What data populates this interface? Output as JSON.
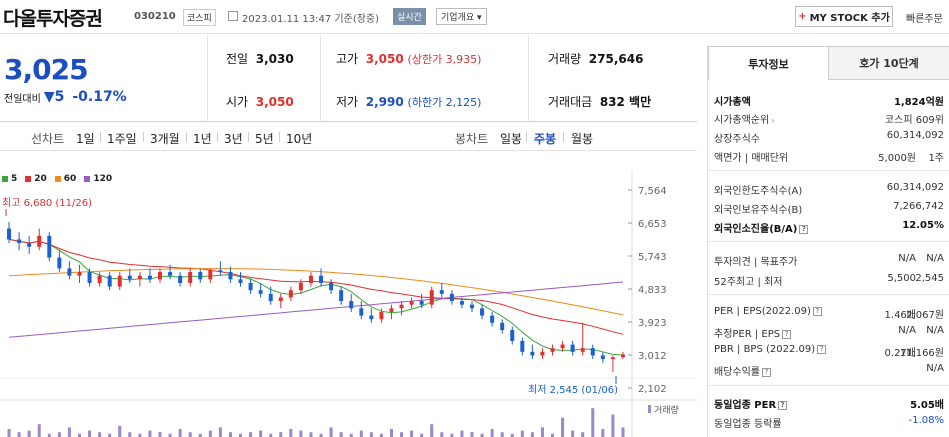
{
  "header": {
    "name": "다올투자증권",
    "code": "030210",
    "market": "코스피",
    "datetime": "2023.01.11 13:47 기준(장중)",
    "realtime": "실시간",
    "company_info": "기업개요 ▾",
    "mystock": "MY STOCK 추가",
    "quick_order": "빠른주문"
  },
  "summary": {
    "price": "3,025",
    "change_label": "전일대비",
    "change_value": "▼5",
    "change_pct": "-0.17%",
    "prev_close_label": "전일",
    "prev_close": "3,030",
    "open_label": "시가",
    "open": "3,050",
    "high_label": "고가",
    "high": "3,050",
    "high_limit": "(상한가 3,935)",
    "low_label": "저가",
    "low": "2,990",
    "low_limit": "(하한가 2,125)",
    "volume_label": "거래량",
    "volume": "275,646",
    "amount_label": "거래대금",
    "amount": "832 백만"
  },
  "chart_tabs": {
    "line_label": "선차트",
    "line_items": [
      "1일",
      "1주일",
      "3개월",
      "1년",
      "3년",
      "5년",
      "10년"
    ],
    "candle_label": "봉차트",
    "candle_items": [
      "일봉",
      "주봉",
      "월봉"
    ],
    "active": "주봉"
  },
  "chart_data": {
    "type": "candlestick",
    "legend": [
      {
        "name": "5",
        "color": "#3aa63a"
      },
      {
        "name": "20",
        "color": "#e03030"
      },
      {
        "name": "60",
        "color": "#f08a1a"
      },
      {
        "name": "120",
        "color": "#9a5ac8"
      }
    ],
    "y_ticks": [
      "7,564",
      "6,653",
      "5,743",
      "4,833",
      "3,923",
      "3,012",
      "2,102"
    ],
    "ylim": [
      2102,
      7564
    ],
    "high_label": "최고 6,680 (11/26)",
    "low_label": "최저 2,545 (01/06)",
    "volume_label": "거래량",
    "candles": [
      [
        6500,
        6680,
        6100,
        6200
      ],
      [
        6200,
        6400,
        5900,
        6100
      ],
      [
        6100,
        6300,
        5800,
        6000
      ],
      [
        6000,
        6500,
        5900,
        6300
      ],
      [
        6300,
        6400,
        5600,
        5700
      ],
      [
        5700,
        5900,
        5300,
        5400
      ],
      [
        5400,
        5600,
        5100,
        5200
      ],
      [
        5200,
        5500,
        5000,
        5300
      ],
      [
        5300,
        5400,
        4900,
        5000
      ],
      [
        5000,
        5300,
        4900,
        5200
      ],
      [
        5200,
        5300,
        4800,
        4900
      ],
      [
        4900,
        5300,
        4800,
        5200
      ],
      [
        5200,
        5400,
        5000,
        5100
      ],
      [
        5100,
        5300,
        4900,
        5200
      ],
      [
        5200,
        5400,
        5000,
        5100
      ],
      [
        5100,
        5400,
        5000,
        5300
      ],
      [
        5300,
        5500,
        5100,
        5200
      ],
      [
        5200,
        5300,
        4900,
        5000
      ],
      [
        5000,
        5400,
        4900,
        5300
      ],
      [
        5300,
        5400,
        5000,
        5100
      ],
      [
        5100,
        5400,
        5000,
        5350
      ],
      [
        5350,
        5600,
        5200,
        5300
      ],
      [
        5300,
        5450,
        5000,
        5100
      ],
      [
        5100,
        5300,
        4900,
        5000
      ],
      [
        5000,
        5100,
        4700,
        4800
      ],
      [
        4800,
        5000,
        4600,
        4700
      ],
      [
        4700,
        4900,
        4400,
        4500
      ],
      [
        4500,
        4700,
        4300,
        4600
      ],
      [
        4600,
        4900,
        4500,
        4800
      ],
      [
        4800,
        5100,
        4700,
        5000
      ],
      [
        5000,
        5300,
        4900,
        5200
      ],
      [
        5200,
        5400,
        4900,
        5000
      ],
      [
        5000,
        5100,
        4700,
        4800
      ],
      [
        4800,
        4900,
        4400,
        4500
      ],
      [
        4500,
        4700,
        4200,
        4300
      ],
      [
        4300,
        4500,
        4000,
        4100
      ],
      [
        4100,
        4300,
        3900,
        4000
      ],
      [
        4000,
        4300,
        3900,
        4200
      ],
      [
        4200,
        4400,
        4000,
        4300
      ],
      [
        4300,
        4500,
        4100,
        4400
      ],
      [
        4400,
        4600,
        4300,
        4500
      ],
      [
        4500,
        4700,
        4300,
        4400
      ],
      [
        4400,
        4900,
        4300,
        4800
      ],
      [
        4800,
        5000,
        4600,
        4700
      ],
      [
        4700,
        4800,
        4400,
        4500
      ],
      [
        4500,
        4600,
        4300,
        4400
      ],
      [
        4400,
        4500,
        4200,
        4300
      ],
      [
        4300,
        4400,
        4000,
        4100
      ],
      [
        4100,
        4200,
        3800,
        3900
      ],
      [
        3900,
        4000,
        3600,
        3700
      ],
      [
        3700,
        3800,
        3300,
        3400
      ],
      [
        3400,
        3500,
        3000,
        3100
      ],
      [
        3100,
        3300,
        2900,
        3000
      ],
      [
        3000,
        3200,
        2900,
        3100
      ],
      [
        3100,
        3300,
        3000,
        3200
      ],
      [
        3200,
        3400,
        3100,
        3300
      ],
      [
        3300,
        3400,
        3000,
        3100
      ],
      [
        3100,
        3900,
        3000,
        3200
      ],
      [
        3200,
        3300,
        2900,
        3000
      ],
      [
        3000,
        3100,
        2800,
        2900
      ],
      [
        2900,
        3000,
        2545,
        2950
      ],
      [
        2950,
        3100,
        2900,
        3025
      ]
    ]
  },
  "right_panel": {
    "tab_active": "투자정보",
    "tab_inactive": "호가 10단계",
    "market_cap_label": "시가총액",
    "market_cap": "1,824억원",
    "market_cap_rank_label": "시가총액순위",
    "market_cap_rank": "코스피 609위",
    "shares_label": "상장주식수",
    "shares": "60,314,092",
    "par_label": "액면가 | 매매단위",
    "par": "5,000원",
    "lot": "1주",
    "foreign_limit_label": "외국인한도주식수(A)",
    "foreign_limit": "60,314,092",
    "foreign_hold_label": "외국인보유주식수(B)",
    "foreign_hold": "7,266,742",
    "foreign_rate_label": "외국인소진율(B/A)",
    "foreign_rate": "12.05%",
    "opinion_label": "투자의견 | 목표주가",
    "opinion": "N/A",
    "target": "N/A",
    "week52_label": "52주최고 | 최저",
    "week52_high": "5,500",
    "week52_low": "2,545",
    "per_label": "PER | EPS(2022.09)",
    "per": "1.46배",
    "eps": "2,067원",
    "est_per_label": "추정PER | EPS",
    "est_per": "N/A",
    "est_eps": "N/A",
    "pbr_label": "PBR | BPS (2022.09)",
    "pbr": "0.27배",
    "bps": "11,166원",
    "dividend_label": "배당수익률",
    "dividend": "N/A",
    "sector_per_label": "동일업종 PER",
    "sector_per": "5.05배",
    "sector_change_label": "동일업종 등락률",
    "sector_change": "-1.08%"
  }
}
